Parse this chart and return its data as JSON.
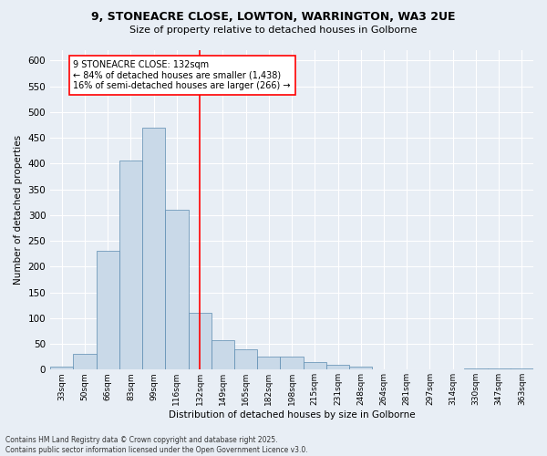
{
  "title_line1": "9, STONEACRE CLOSE, LOWTON, WARRINGTON, WA3 2UE",
  "title_line2": "Size of property relative to detached houses in Golborne",
  "xlabel": "Distribution of detached houses by size in Golborne",
  "ylabel": "Number of detached properties",
  "footer": "Contains HM Land Registry data © Crown copyright and database right 2025.\nContains public sector information licensed under the Open Government Licence v3.0.",
  "bin_labels": [
    "33sqm",
    "50sqm",
    "66sqm",
    "83sqm",
    "99sqm",
    "116sqm",
    "132sqm",
    "149sqm",
    "165sqm",
    "182sqm",
    "198sqm",
    "215sqm",
    "231sqm",
    "248sqm",
    "264sqm",
    "281sqm",
    "297sqm",
    "314sqm",
    "330sqm",
    "347sqm",
    "363sqm"
  ],
  "bar_values": [
    5,
    30,
    230,
    405,
    470,
    310,
    110,
    57,
    40,
    25,
    25,
    14,
    10,
    5,
    0,
    0,
    0,
    0,
    2,
    3,
    2
  ],
  "bar_color": "#c9d9e8",
  "bar_edge_color": "#5a8ab0",
  "vline_x": 6,
  "vline_color": "red",
  "annotation_text": "9 STONEACRE CLOSE: 132sqm\n← 84% of detached houses are smaller (1,438)\n16% of semi-detached houses are larger (266) →",
  "annotation_box_color": "white",
  "annotation_box_edge": "red",
  "ylim": [
    0,
    620
  ],
  "yticks": [
    0,
    50,
    100,
    150,
    200,
    250,
    300,
    350,
    400,
    450,
    500,
    550,
    600
  ],
  "background_color": "#e8eef5",
  "grid_color": "white"
}
